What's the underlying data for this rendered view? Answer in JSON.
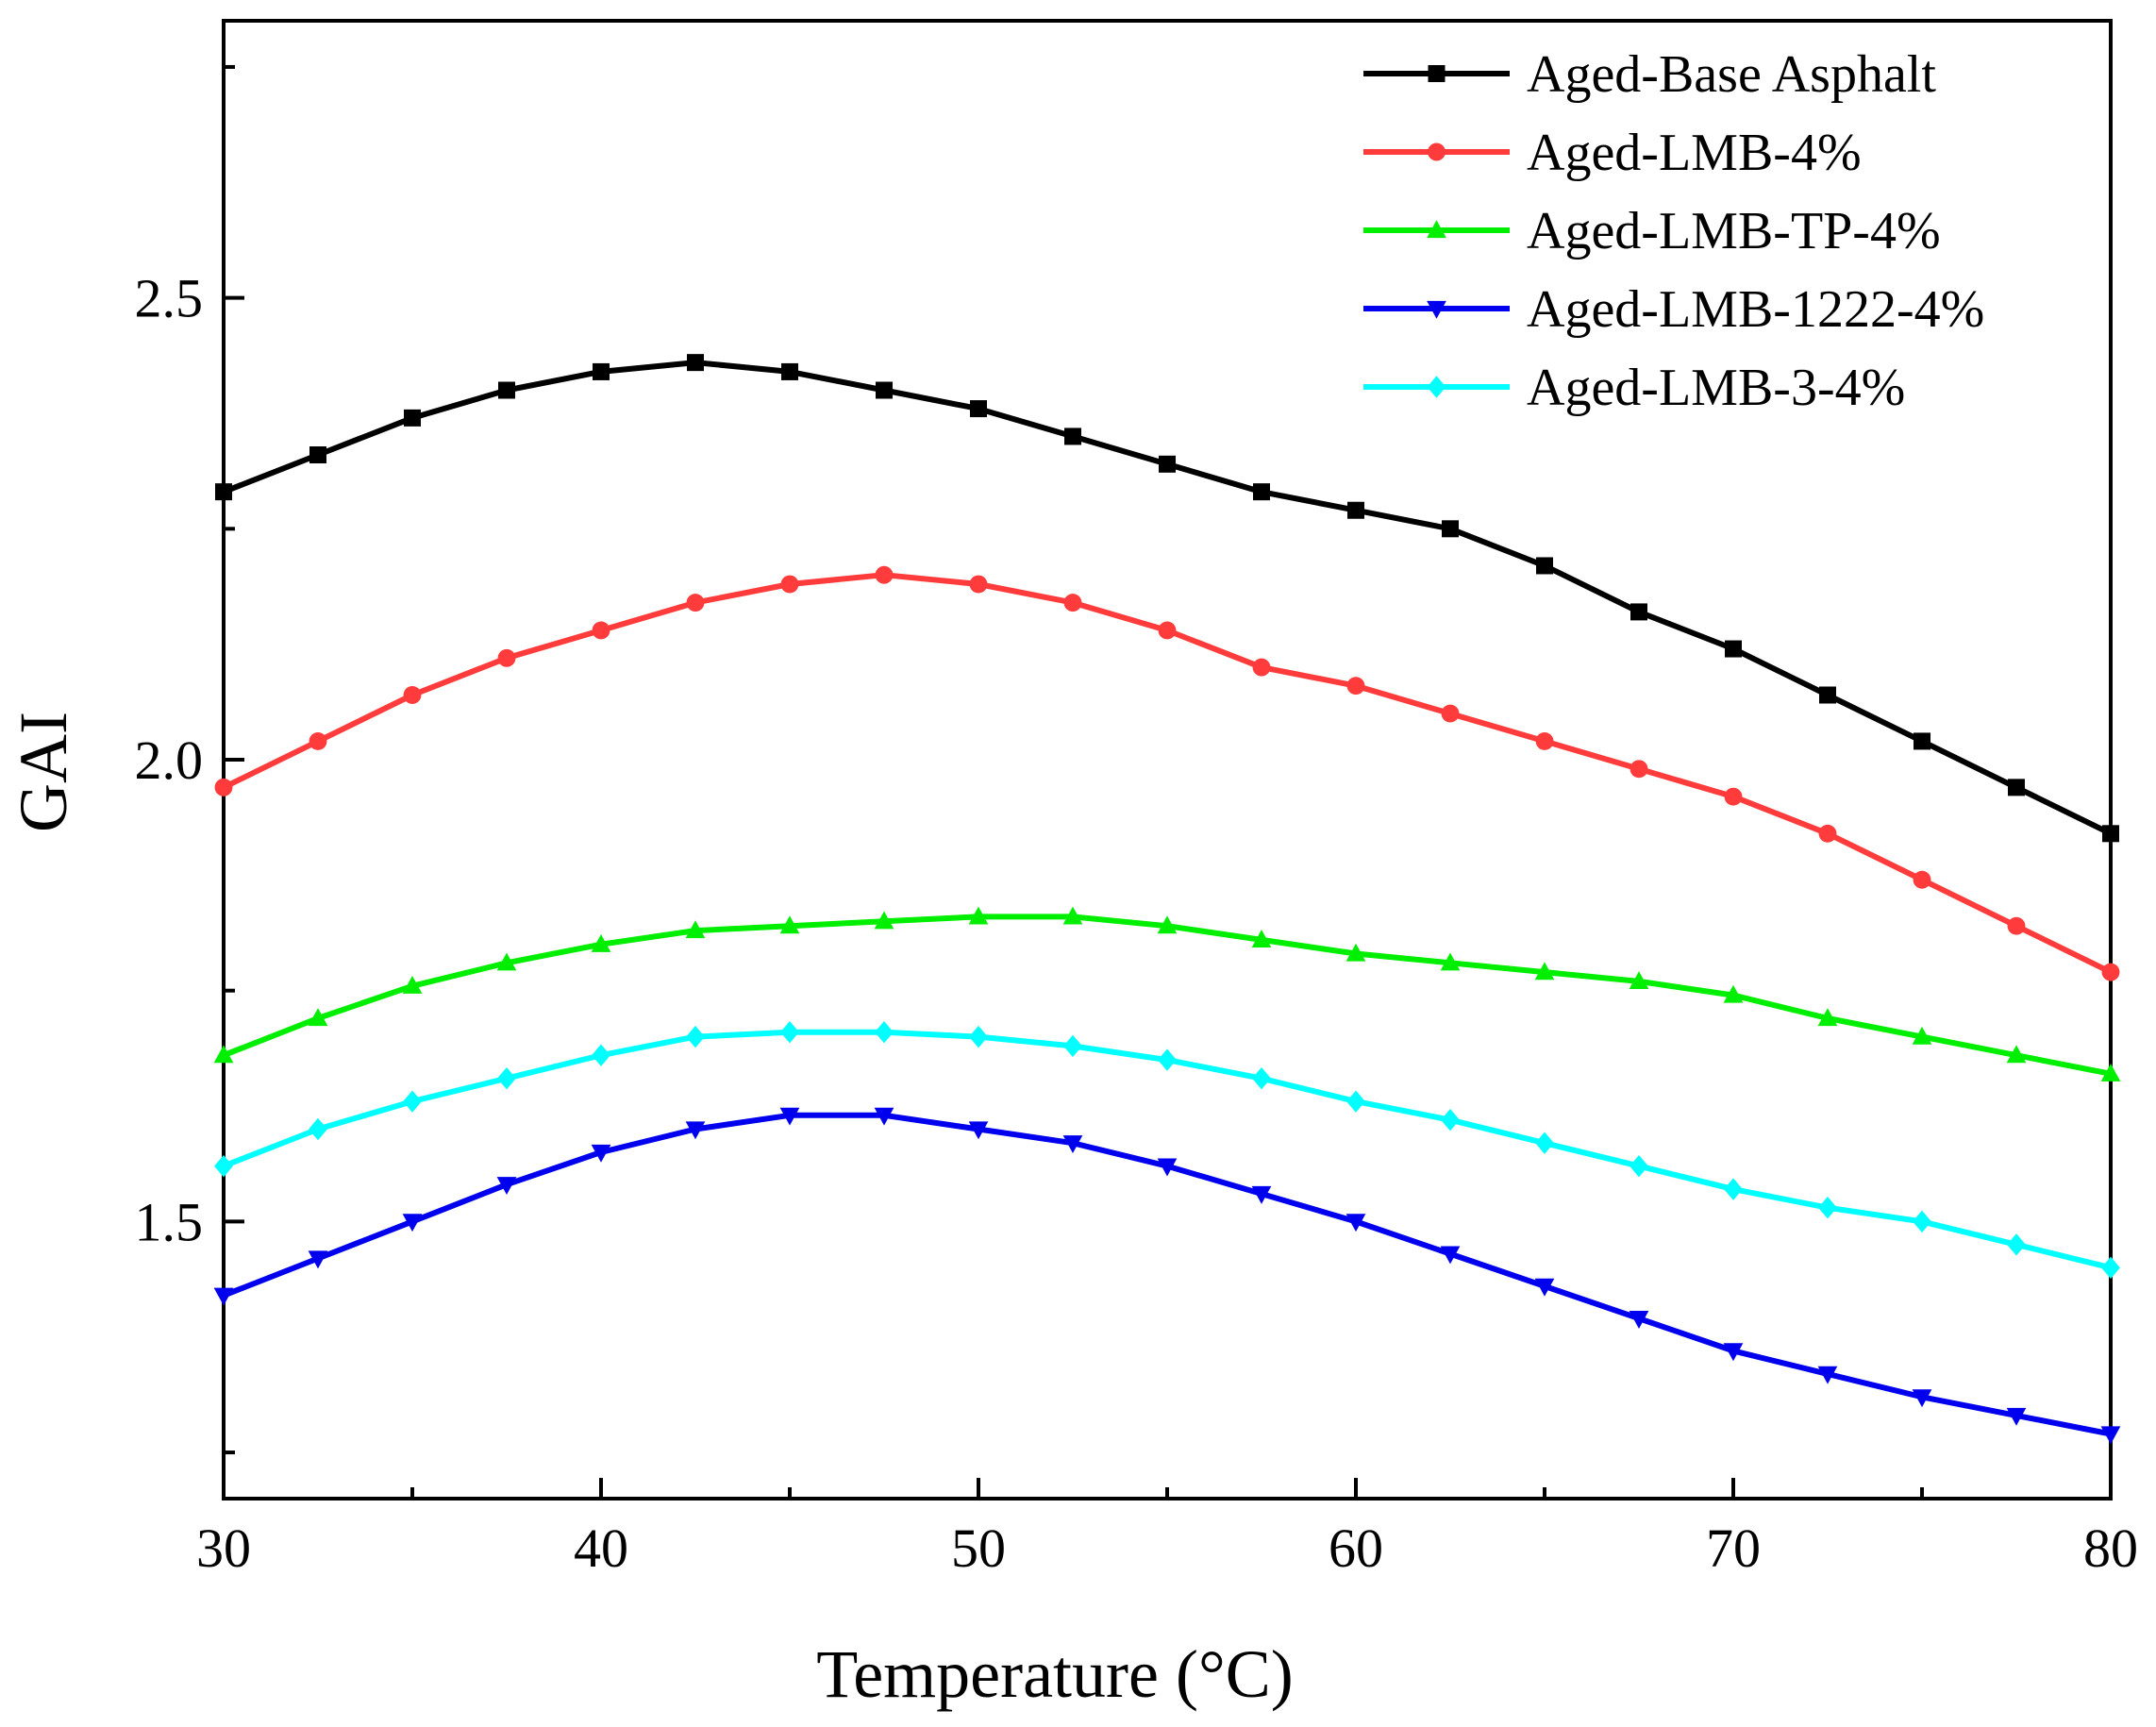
{
  "chart_data": {
    "type": "line",
    "xlabel": "Temperature (°C)",
    "ylabel": "GAI",
    "xlim": [
      30,
      80
    ],
    "ylim": [
      1.2,
      2.8
    ],
    "xticks": [
      30,
      40,
      50,
      60,
      70,
      80
    ],
    "yticks": [
      1.5,
      2.0,
      2.5
    ],
    "ytick_labels": [
      "1.5",
      "2.0",
      "2.5"
    ],
    "grid": false,
    "legend_position": "top-right",
    "series": [
      {
        "name": "Aged-Base Asphalt",
        "color": "#000000",
        "marker": "square",
        "x": [
          30,
          32.5,
          35,
          37.5,
          40,
          42.5,
          45,
          47.5,
          50,
          52.5,
          55,
          57.5,
          60,
          62.5,
          65,
          67.5,
          70,
          72.5,
          75,
          77.5,
          80
        ],
        "y": [
          2.29,
          2.33,
          2.37,
          2.4,
          2.42,
          2.43,
          2.42,
          2.4,
          2.38,
          2.35,
          2.32,
          2.29,
          2.27,
          2.25,
          2.21,
          2.16,
          2.12,
          2.07,
          2.02,
          1.97,
          1.92
        ]
      },
      {
        "name": "Aged-LMB-4%",
        "color": "#ff3b3b",
        "marker": "circle",
        "x": [
          30,
          32.5,
          35,
          37.5,
          40,
          42.5,
          45,
          47.5,
          50,
          52.5,
          55,
          57.5,
          60,
          62.5,
          65,
          67.5,
          70,
          72.5,
          75,
          77.5,
          80
        ],
        "y": [
          1.97,
          2.02,
          2.07,
          2.11,
          2.14,
          2.17,
          2.19,
          2.2,
          2.19,
          2.17,
          2.14,
          2.1,
          2.08,
          2.05,
          2.02,
          1.99,
          1.96,
          1.92,
          1.87,
          1.82,
          1.77
        ]
      },
      {
        "name": "Aged-LMB-TP-4%",
        "color": "#00ee00",
        "marker": "triangle-up",
        "x": [
          30,
          32.5,
          35,
          37.5,
          40,
          42.5,
          45,
          47.5,
          50,
          52.5,
          55,
          57.5,
          60,
          62.5,
          65,
          67.5,
          70,
          72.5,
          75,
          77.5,
          80
        ],
        "y": [
          1.68,
          1.72,
          1.755,
          1.78,
          1.8,
          1.815,
          1.82,
          1.825,
          1.83,
          1.83,
          1.82,
          1.805,
          1.79,
          1.78,
          1.77,
          1.76,
          1.745,
          1.72,
          1.7,
          1.68,
          1.66
        ]
      },
      {
        "name": "Aged-LMB-1222-4%",
        "color": "#0000ee",
        "marker": "triangle-down",
        "x": [
          30,
          32.5,
          35,
          37.5,
          40,
          42.5,
          45,
          47.5,
          50,
          52.5,
          55,
          57.5,
          60,
          62.5,
          65,
          67.5,
          70,
          72.5,
          75,
          77.5,
          80
        ],
        "y": [
          1.42,
          1.46,
          1.5,
          1.54,
          1.575,
          1.6,
          1.615,
          1.615,
          1.6,
          1.585,
          1.56,
          1.53,
          1.5,
          1.465,
          1.43,
          1.395,
          1.36,
          1.335,
          1.31,
          1.29,
          1.27
        ]
      },
      {
        "name": "Aged-LMB-3-4%",
        "color": "#00ffff",
        "marker": "diamond",
        "x": [
          30,
          32.5,
          35,
          37.5,
          40,
          42.5,
          45,
          47.5,
          50,
          52.5,
          55,
          57.5,
          60,
          62.5,
          65,
          67.5,
          70,
          72.5,
          75,
          77.5,
          80
        ],
        "y": [
          1.56,
          1.6,
          1.63,
          1.655,
          1.68,
          1.7,
          1.705,
          1.705,
          1.7,
          1.69,
          1.675,
          1.655,
          1.63,
          1.61,
          1.585,
          1.56,
          1.535,
          1.515,
          1.5,
          1.475,
          1.45
        ]
      }
    ]
  }
}
